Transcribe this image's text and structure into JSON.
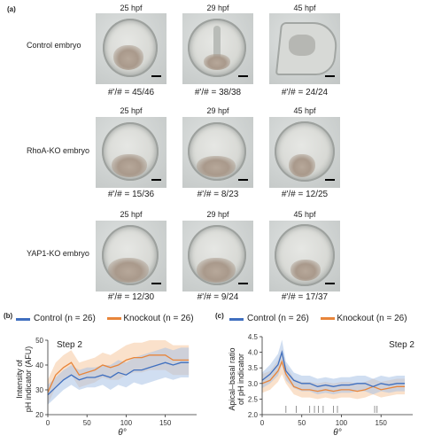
{
  "panel_a": {
    "label": "(a)",
    "columns": [
      "25 hpf",
      "29 hpf",
      "45 hpf"
    ],
    "rows": [
      {
        "label": "Control embryo",
        "counts": [
          "#'/# = 45/46",
          "#'/# = 38/38",
          "#'/# = 24/24"
        ]
      },
      {
        "label": "RhoA-KO embryo",
        "counts": [
          "#'/# = 15/36",
          "#'/# = 8/23",
          "#'/# = 12/25"
        ]
      },
      {
        "label": "YAP1-KO embryo",
        "counts": [
          "#'/# = 12/30",
          "#'/# = 9/24",
          "#'/# = 17/37"
        ]
      }
    ]
  },
  "panel_b": {
    "label": "(b)",
    "legend": {
      "control": "Control",
      "control_n": "(n = 26)",
      "knockout": "Knockout",
      "knockout_n": "(n = 26)"
    },
    "step": "Step 2",
    "ylabel_line1": "Intensity of",
    "ylabel_line2": "pH indicator (AFU)",
    "xlabel": "θ°"
  },
  "panel_c": {
    "label": "(c)",
    "legend": {
      "control": "Control",
      "control_n": "(n = 26)",
      "knockout": "Knockout",
      "knockout_n": "(n = 26)"
    },
    "step": "Step 2",
    "ylabel_line1": "Apical–basal ratio",
    "ylabel_line2": "of pH indicator",
    "xlabel": "θ°"
  },
  "colors": {
    "control": "#3f6fbf",
    "knockout": "#e8853a",
    "control_band": "#a9c3e6",
    "knockout_band": "#f6c9a1"
  },
  "chart_data": [
    {
      "type": "line",
      "title": "Step 2",
      "xlabel": "θ°",
      "ylabel": "Intensity of pH indicator (AFU)",
      "xlim": [
        0,
        190
      ],
      "ylim": [
        20,
        50
      ],
      "xticks": [
        0,
        50,
        100,
        150
      ],
      "yticks": [
        20,
        30,
        40,
        50
      ],
      "x": [
        0,
        10,
        20,
        30,
        40,
        50,
        60,
        70,
        80,
        90,
        100,
        110,
        120,
        130,
        140,
        150,
        160,
        170,
        180
      ],
      "series": [
        {
          "name": "Control (n = 26)",
          "values": [
            28,
            31,
            34,
            36,
            34,
            35,
            35,
            36,
            35,
            37,
            36,
            38,
            38,
            39,
            40,
            41,
            40,
            41,
            41
          ],
          "band": [
            4,
            4,
            4,
            4,
            4,
            4,
            4,
            4,
            5,
            5,
            5,
            5,
            6,
            6,
            6,
            6,
            6,
            6,
            6
          ]
        },
        {
          "name": "Knockout (n = 26)",
          "values": [
            29,
            36,
            39,
            41,
            36,
            37,
            38,
            40,
            39,
            40,
            42,
            43,
            43,
            44,
            44,
            44,
            42,
            42,
            42
          ],
          "band": [
            5,
            5,
            5,
            5,
            5,
            5,
            5,
            5,
            5,
            6,
            6,
            6,
            6,
            6,
            6,
            6,
            6,
            6,
            6
          ]
        }
      ],
      "legend": "top",
      "grid": false
    },
    {
      "type": "line",
      "title": "Step 2",
      "xlabel": "θ°",
      "ylabel": "Apical–basal ratio of pH indicator",
      "xlim": [
        0,
        190
      ],
      "ylim": [
        2.0,
        4.5
      ],
      "xticks": [
        0,
        50,
        100,
        150
      ],
      "yticks": [
        2.0,
        2.5,
        3.0,
        3.5,
        4.0,
        4.5
      ],
      "x": [
        0,
        10,
        20,
        25,
        30,
        40,
        50,
        60,
        70,
        80,
        90,
        100,
        110,
        120,
        130,
        140,
        150,
        160,
        170,
        180
      ],
      "series": [
        {
          "name": "Control (n = 26)",
          "values": [
            3.1,
            3.3,
            3.6,
            4.0,
            3.4,
            3.1,
            3.0,
            3.0,
            2.9,
            2.95,
            2.9,
            2.95,
            2.95,
            3.0,
            3.0,
            2.9,
            3.0,
            2.95,
            3.0,
            3.0
          ],
          "band": [
            0.25,
            0.3,
            0.35,
            0.4,
            0.3,
            0.25,
            0.25,
            0.25,
            0.25,
            0.25,
            0.25,
            0.25,
            0.25,
            0.25,
            0.25,
            0.25,
            0.25,
            0.25,
            0.25,
            0.25
          ]
        },
        {
          "name": "Knockout (n = 26)",
          "values": [
            3.0,
            3.1,
            3.4,
            3.7,
            3.3,
            2.9,
            2.8,
            2.8,
            2.75,
            2.8,
            2.75,
            2.8,
            2.8,
            2.75,
            2.8,
            2.9,
            2.8,
            2.85,
            2.9,
            2.9
          ],
          "band": [
            0.3,
            0.3,
            0.35,
            0.4,
            0.3,
            0.25,
            0.25,
            0.25,
            0.25,
            0.25,
            0.25,
            0.25,
            0.25,
            0.25,
            0.25,
            0.25,
            0.25,
            0.25,
            0.25,
            0.25
          ]
        }
      ],
      "significance_ticks_x": [
        30,
        43,
        60,
        66,
        71,
        77,
        90,
        95,
        142,
        145
      ],
      "legend": "top",
      "grid": false
    }
  ]
}
